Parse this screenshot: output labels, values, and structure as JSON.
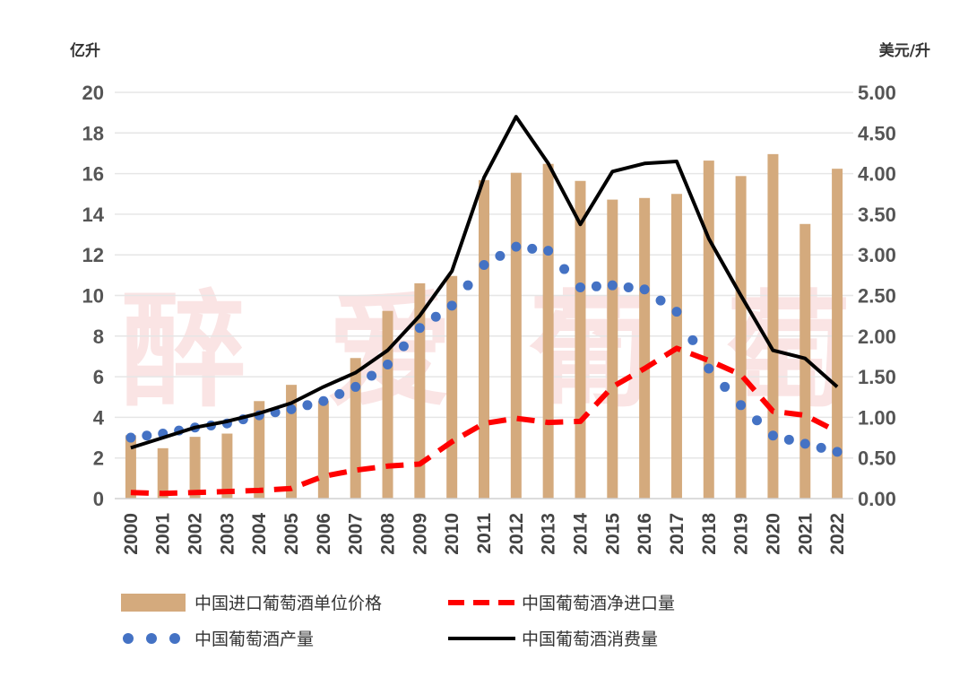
{
  "chart_data": {
    "type": "bar",
    "title": "",
    "watermark": "醉 爱 葡 萄",
    "categories": [
      "2000",
      "2001",
      "2002",
      "2003",
      "2004",
      "2005",
      "2006",
      "2007",
      "2008",
      "2009",
      "2010",
      "2011",
      "2012",
      "2013",
      "2014",
      "2015",
      "2016",
      "2017",
      "2018",
      "2019",
      "2020",
      "2021",
      "2022"
    ],
    "left_axis": {
      "unit": "亿升",
      "ylim": [
        0,
        20
      ],
      "ticks": [
        0,
        2,
        4,
        6,
        8,
        10,
        12,
        14,
        16,
        18,
        20
      ]
    },
    "right_axis": {
      "unit": "美元/升",
      "ylim": [
        0,
        5
      ],
      "ticks": [
        "0.00",
        "0.50",
        "1.00",
        "1.50",
        "2.00",
        "2.50",
        "3.00",
        "3.50",
        "4.00",
        "4.50",
        "5.00"
      ]
    },
    "series": [
      {
        "name": "中国进口葡萄酒单位价格",
        "type": "bar",
        "axis": "right",
        "color": "#d4aa7d",
        "values": [
          0.78,
          0.62,
          0.76,
          0.8,
          1.2,
          1.4,
          1.2,
          1.73,
          2.31,
          2.65,
          2.74,
          3.92,
          4.01,
          4.12,
          3.91,
          3.68,
          3.7,
          3.75,
          4.16,
          3.97,
          4.24,
          3.38,
          4.06
        ]
      },
      {
        "name": "中国葡萄酒净进口量",
        "type": "line",
        "style": "dashed",
        "axis": "left",
        "color": "#ff0000",
        "values": [
          0.3,
          0.25,
          0.3,
          0.35,
          0.4,
          0.5,
          1.1,
          1.4,
          1.6,
          1.7,
          2.8,
          3.7,
          3.95,
          3.75,
          3.8,
          5.5,
          6.4,
          7.4,
          6.8,
          6.1,
          4.3,
          4.1,
          3.3
        ]
      },
      {
        "name": "中国葡萄酒产量",
        "type": "scatter",
        "style": "dotted",
        "axis": "left",
        "color": "#4472c4",
        "values": [
          3.0,
          3.2,
          3.5,
          3.7,
          4.1,
          4.4,
          4.8,
          5.5,
          6.6,
          8.4,
          9.5,
          11.5,
          12.4,
          12.2,
          10.4,
          10.5,
          10.3,
          9.2,
          6.4,
          4.6,
          3.1,
          2.7,
          2.3
        ]
      },
      {
        "name": "中国葡萄酒消费量",
        "type": "line",
        "style": "solid",
        "axis": "left",
        "color": "#000000",
        "values": [
          2.5,
          3.0,
          3.5,
          3.8,
          4.2,
          4.7,
          5.5,
          6.2,
          7.3,
          9.0,
          11.2,
          15.8,
          18.8,
          16.5,
          13.5,
          16.1,
          16.5,
          16.6,
          12.8,
          10.0,
          7.3,
          6.9,
          5.5
        ]
      }
    ],
    "legend": [
      {
        "label": "中国进口葡萄酒单位价格",
        "series": 0
      },
      {
        "label": "中国葡萄酒净进口量",
        "series": 1
      },
      {
        "label": "中国葡萄酒产量",
        "series": 2
      },
      {
        "label": "中国葡萄酒消费量",
        "series": 3
      }
    ],
    "legend_position": "bottom",
    "grid": true
  }
}
